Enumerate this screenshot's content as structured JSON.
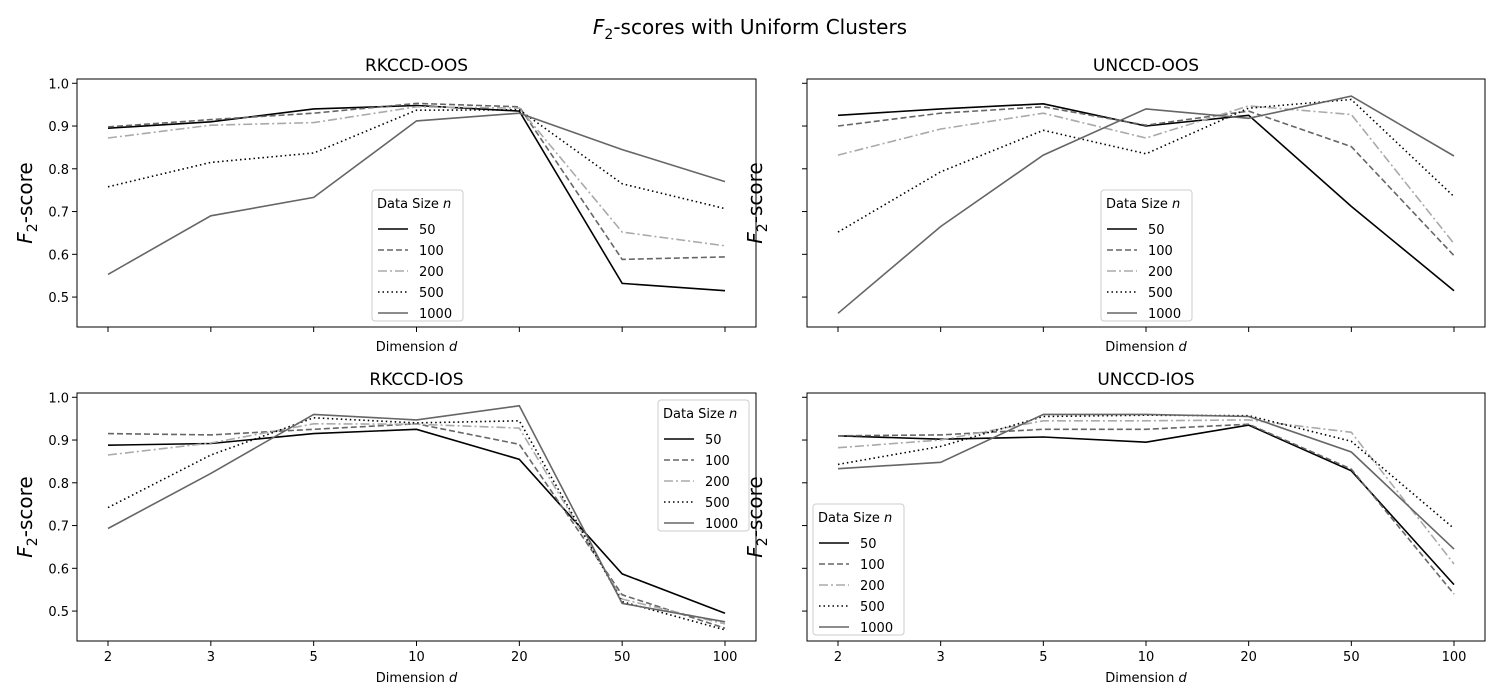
{
  "figure_title": "F2-scores with Uniform Clusters",
  "figure_title_parts": {
    "f": "F",
    "sub": "2",
    "rest": "-scores with Uniform Clusters"
  },
  "chart_data": [
    {
      "type": "line",
      "title": "RKCCD-OOS",
      "xlabel": "Dimension d",
      "ylabel": "F2-score",
      "categories": [
        "2",
        "3",
        "5",
        "10",
        "20",
        "50",
        "100"
      ],
      "ylim": [
        0.43,
        1.01
      ],
      "yticks": [
        "0.5",
        "0.6",
        "0.7",
        "0.8",
        "0.9",
        "1.0"
      ],
      "show_xticklabels": false,
      "show_yticklabels": true,
      "legend": {
        "title": "Data Size n",
        "position": "center"
      },
      "series": [
        {
          "name": "50",
          "values": [
            0.895,
            0.91,
            0.94,
            0.948,
            0.935,
            0.532,
            0.515
          ]
        },
        {
          "name": "100",
          "values": [
            0.898,
            0.915,
            0.93,
            0.953,
            0.945,
            0.588,
            0.594
          ]
        },
        {
          "name": "200",
          "values": [
            0.872,
            0.902,
            0.908,
            0.945,
            0.942,
            0.652,
            0.62
          ]
        },
        {
          "name": "500",
          "values": [
            0.758,
            0.815,
            0.837,
            0.937,
            0.938,
            0.765,
            0.707
          ]
        },
        {
          "name": "1000",
          "values": [
            0.553,
            0.69,
            0.733,
            0.912,
            0.93,
            0.845,
            0.77
          ]
        }
      ]
    },
    {
      "type": "line",
      "title": "UNCCD-OOS",
      "xlabel": "Dimension d",
      "ylabel": "F2-score",
      "categories": [
        "2",
        "3",
        "5",
        "10",
        "20",
        "50",
        "100"
      ],
      "ylim": [
        0.43,
        1.01
      ],
      "yticks": [
        "0.5",
        "0.6",
        "0.7",
        "0.8",
        "0.9",
        "1.0"
      ],
      "show_xticklabels": false,
      "show_yticklabels": false,
      "legend": {
        "title": "Data Size n",
        "position": "center"
      },
      "series": [
        {
          "name": "50",
          "values": [
            0.925,
            0.94,
            0.952,
            0.9,
            0.925,
            0.712,
            0.515
          ]
        },
        {
          "name": "100",
          "values": [
            0.9,
            0.93,
            0.945,
            0.902,
            0.935,
            0.852,
            0.597
          ]
        },
        {
          "name": "200",
          "values": [
            0.832,
            0.893,
            0.93,
            0.872,
            0.947,
            0.927,
            0.625
          ]
        },
        {
          "name": "500",
          "values": [
            0.652,
            0.793,
            0.89,
            0.835,
            0.942,
            0.962,
            0.735
          ]
        },
        {
          "name": "1000",
          "values": [
            0.462,
            0.665,
            0.832,
            0.94,
            0.918,
            0.97,
            0.83
          ]
        }
      ]
    },
    {
      "type": "line",
      "title": "RKCCD-IOS",
      "xlabel": "Dimension d",
      "ylabel": "F2-score",
      "categories": [
        "2",
        "3",
        "5",
        "10",
        "20",
        "50",
        "100"
      ],
      "ylim": [
        0.43,
        1.01
      ],
      "yticks": [
        "0.5",
        "0.6",
        "0.7",
        "0.8",
        "0.9",
        "1.0"
      ],
      "show_xticklabels": true,
      "show_yticklabels": true,
      "legend": {
        "title": "Data Size n",
        "position": "upper right"
      },
      "series": [
        {
          "name": "50",
          "values": [
            0.888,
            0.892,
            0.915,
            0.925,
            0.855,
            0.587,
            0.495
          ]
        },
        {
          "name": "100",
          "values": [
            0.915,
            0.912,
            0.925,
            0.938,
            0.89,
            0.538,
            0.46
          ]
        },
        {
          "name": "200",
          "values": [
            0.865,
            0.893,
            0.938,
            0.937,
            0.928,
            0.528,
            0.47
          ]
        },
        {
          "name": "500",
          "values": [
            0.742,
            0.865,
            0.952,
            0.94,
            0.945,
            0.522,
            0.456
          ]
        },
        {
          "name": "1000",
          "values": [
            0.693,
            0.822,
            0.96,
            0.947,
            0.98,
            0.518,
            0.475
          ]
        }
      ]
    },
    {
      "type": "line",
      "title": "UNCCD-IOS",
      "xlabel": "Dimension d",
      "ylabel": "F2-score",
      "categories": [
        "2",
        "3",
        "5",
        "10",
        "20",
        "50",
        "100"
      ],
      "ylim": [
        0.43,
        1.01
      ],
      "yticks": [
        "0.5",
        "0.6",
        "0.7",
        "0.8",
        "0.9",
        "1.0"
      ],
      "show_xticklabels": true,
      "show_yticklabels": false,
      "legend": {
        "title": "Data Size n",
        "position": "lower left"
      },
      "series": [
        {
          "name": "50",
          "values": [
            0.91,
            0.902,
            0.907,
            0.895,
            0.935,
            0.828,
            0.562
          ]
        },
        {
          "name": "100",
          "values": [
            0.91,
            0.912,
            0.925,
            0.925,
            0.937,
            0.832,
            0.54
          ]
        },
        {
          "name": "200",
          "values": [
            0.882,
            0.9,
            0.945,
            0.945,
            0.947,
            0.918,
            0.61
          ]
        },
        {
          "name": "500",
          "values": [
            0.843,
            0.885,
            0.955,
            0.958,
            0.957,
            0.897,
            0.693
          ]
        },
        {
          "name": "1000",
          "values": [
            0.833,
            0.848,
            0.96,
            0.96,
            0.955,
            0.872,
            0.645
          ]
        }
      ]
    }
  ],
  "series_styles": [
    {
      "color": "#000000",
      "dash": ""
    },
    {
      "color": "#666666",
      "dash": "6,3"
    },
    {
      "color": "#aaaaaa",
      "dash": "9,3,2,3"
    },
    {
      "color": "#000000",
      "dash": "1.5,3"
    },
    {
      "color": "#666666",
      "dash": ""
    }
  ]
}
